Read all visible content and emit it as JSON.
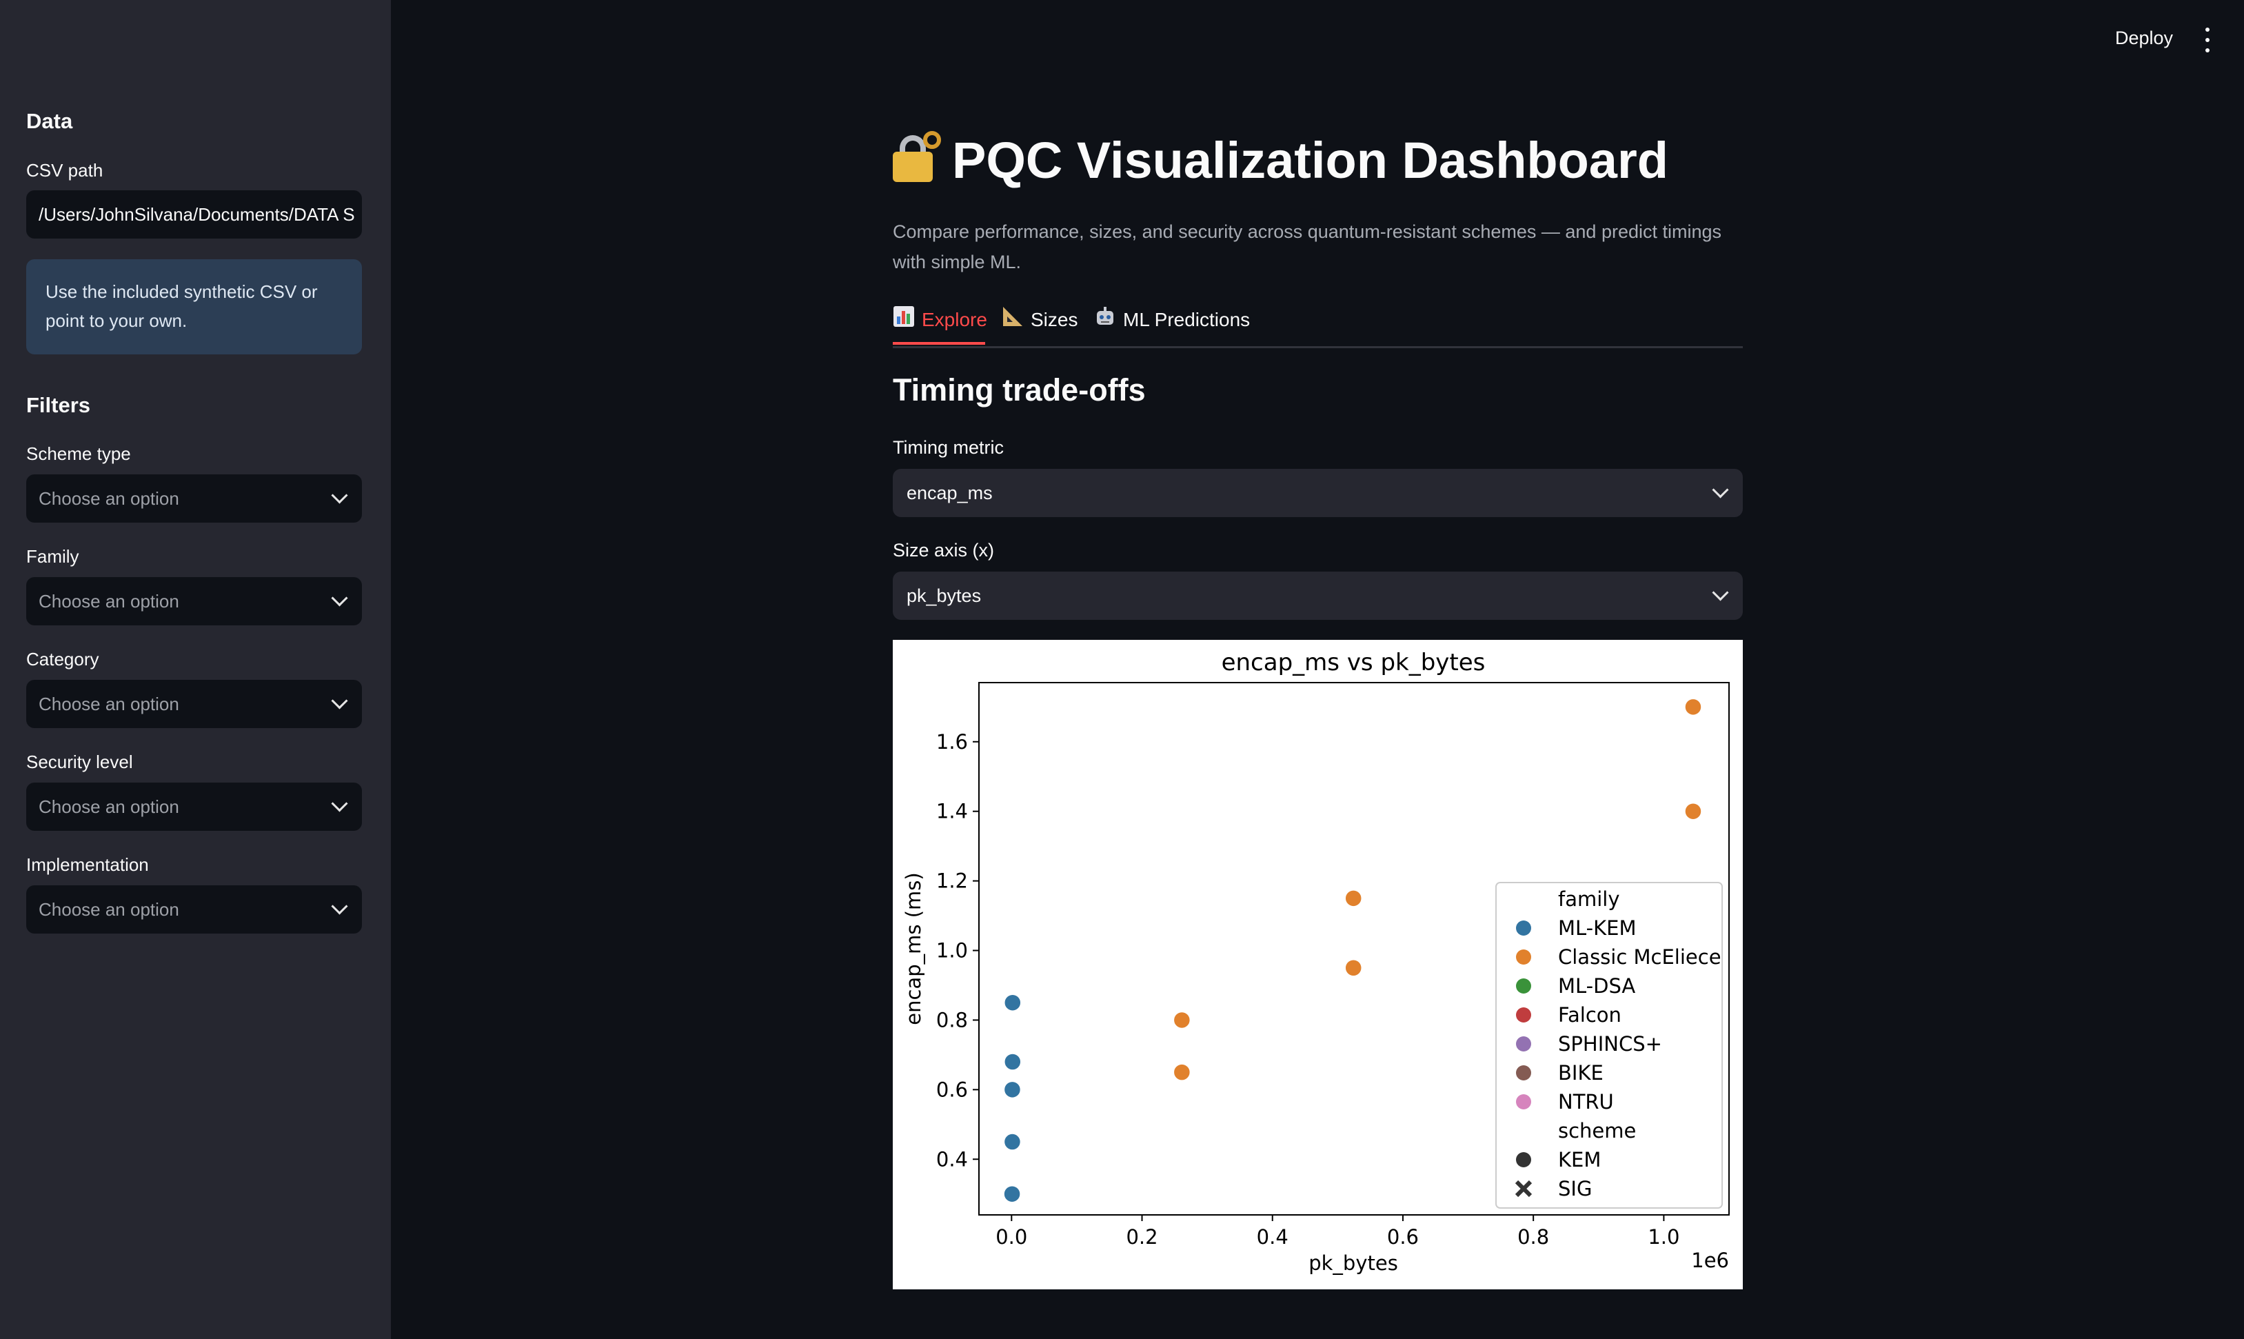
{
  "sidebar": {
    "data_heading": "Data",
    "csv_label": "CSV path",
    "csv_value": "/Users/JohnSilvana/Documents/DATA S",
    "info_text": "Use the included synthetic CSV or point to your own.",
    "filters_heading": "Filters",
    "filters": [
      {
        "label": "Scheme type",
        "placeholder": "Choose an option"
      },
      {
        "label": "Family",
        "placeholder": "Choose an option"
      },
      {
        "label": "Category",
        "placeholder": "Choose an option"
      },
      {
        "label": "Security level",
        "placeholder": "Choose an option"
      },
      {
        "label": "Implementation",
        "placeholder": "Choose an option"
      }
    ]
  },
  "header": {
    "deploy_label": "Deploy",
    "menu_icon": "kebab-menu-icon"
  },
  "main": {
    "title": "PQC Visualization Dashboard",
    "title_icon": "lock-key-icon",
    "subtitle": "Compare performance, sizes, and security across quantum-resistant schemes — and predict timings with simple ML.",
    "tabs": [
      {
        "label": "Explore",
        "icon": "bar-chart-icon",
        "active": true
      },
      {
        "label": "Sizes",
        "icon": "triangle-ruler-icon",
        "active": false
      },
      {
        "label": "ML Predictions",
        "icon": "robot-icon",
        "active": false
      }
    ],
    "section_heading": "Timing trade-offs",
    "timing_metric_label": "Timing metric",
    "timing_metric_value": "encap_ms",
    "size_axis_label": "Size axis (x)",
    "size_axis_value": "pk_bytes"
  },
  "chart_data": {
    "type": "scatter",
    "title": "encap_ms vs pk_bytes",
    "xlabel": "pk_bytes",
    "ylabel": "encap_ms (ms)",
    "x_offset_label": "1e6",
    "xlim": [
      -50000,
      1100000
    ],
    "ylim": [
      0.24,
      1.77
    ],
    "x_ticks": [
      0,
      200000,
      400000,
      600000,
      800000,
      1000000
    ],
    "x_tick_labels": [
      "0.0",
      "0.2",
      "0.4",
      "0.6",
      "0.8",
      "1.0"
    ],
    "y_ticks": [
      0.4,
      0.6,
      0.8,
      1.0,
      1.2,
      1.4,
      1.6
    ],
    "y_tick_labels": [
      "0.4",
      "0.6",
      "0.8",
      "1.0",
      "1.2",
      "1.4",
      "1.6"
    ],
    "grid": false,
    "legend_position": "lower-right",
    "series": [
      {
        "name": "ML-KEM",
        "color": "#3274a1",
        "points": [
          [
            800,
            0.3
          ],
          [
            1184,
            0.45
          ],
          [
            1184,
            0.6
          ],
          [
            1568,
            0.68
          ],
          [
            1568,
            0.85
          ]
        ]
      },
      {
        "name": "Classic McEliece",
        "color": "#e1812c",
        "points": [
          [
            261120,
            0.65
          ],
          [
            261120,
            0.8
          ],
          [
            524160,
            0.95
          ],
          [
            524160,
            1.15
          ],
          [
            1044992,
            1.4
          ],
          [
            1044992,
            1.7
          ]
        ]
      },
      {
        "name": "ML-DSA",
        "color": "#3a923a",
        "points": []
      },
      {
        "name": "Falcon",
        "color": "#c03d3e",
        "points": []
      },
      {
        "name": "SPHINCS+",
        "color": "#9372b2",
        "points": []
      },
      {
        "name": "BIKE",
        "color": "#845b53",
        "points": []
      },
      {
        "name": "NTRU",
        "color": "#d684bd",
        "points": []
      }
    ],
    "legend": {
      "family_title": "family",
      "scheme_title": "scheme",
      "markers": [
        {
          "name": "KEM",
          "shape": "circle"
        },
        {
          "name": "SIG",
          "shape": "x"
        }
      ]
    }
  }
}
